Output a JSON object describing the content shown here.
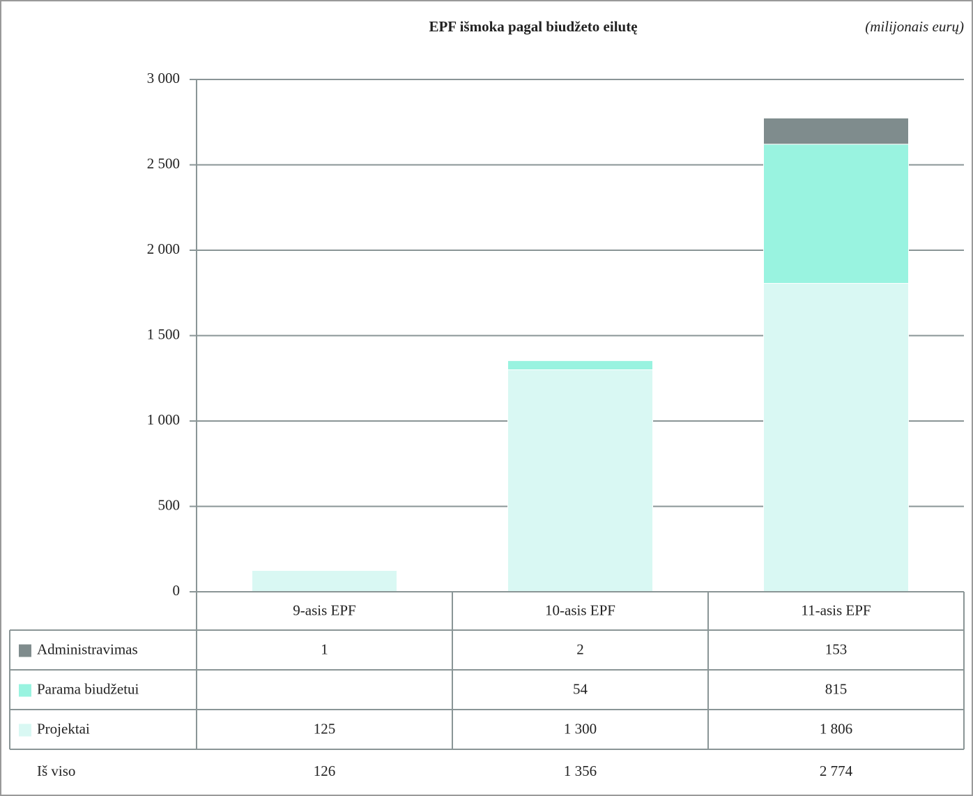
{
  "chart_data": {
    "type": "stacked-bar",
    "title": "EPF išmoka pagal biudžeto eilutę",
    "unit_label": "(milijonais eurų)",
    "categories": [
      "9-asis EPF",
      "10-asis EPF",
      "11-asis EPF"
    ],
    "series": [
      {
        "name": "Projektai",
        "color": "#d9f8f3",
        "values": [
          125,
          1300,
          1806
        ],
        "value_labels": [
          "125",
          "1 300",
          "1 806"
        ]
      },
      {
        "name": "Parama biudžetui",
        "color": "#99f3e0",
        "values": [
          null,
          54,
          815
        ]
      },
      {
        "name": "Administravimas",
        "color": "#7f8c8d",
        "values": [
          1,
          2,
          153
        ]
      }
    ],
    "totals": {
      "name": "Iš viso",
      "values": [
        126,
        1356,
        2774
      ],
      "value_labels": [
        "126",
        "1 356",
        "2 774"
      ]
    },
    "ylim": [
      0,
      3000
    ],
    "yticks": [
      0,
      500,
      {
        "value": 1000,
        "label": "1 000"
      },
      {
        "value": 1500,
        "label": "1 500"
      },
      {
        "value": 2000,
        "label": "2 000"
      },
      {
        "value": 2500,
        "label": "2 500"
      },
      {
        "value": 3000,
        "label": "3 000"
      }
    ],
    "grid": true
  }
}
